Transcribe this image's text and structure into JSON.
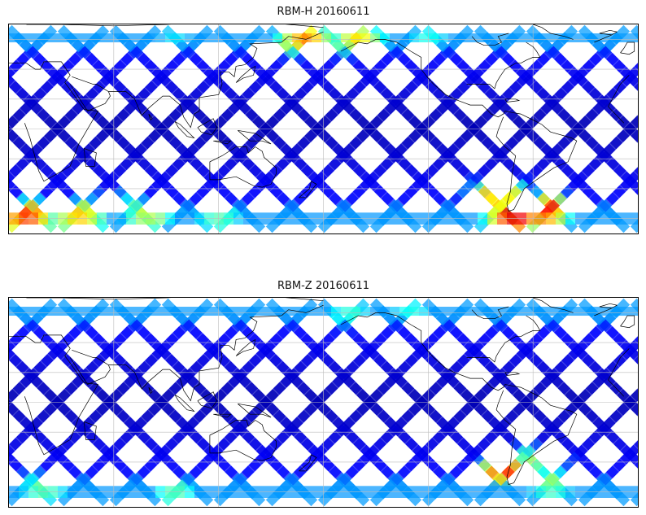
{
  "panels": [
    {
      "title": "RBM-H 20160611",
      "colormap": "jet",
      "hotspots": [
        {
          "lon": 290,
          "lat": -58,
          "level": 0.95
        },
        {
          "lon": 305,
          "lat": -55,
          "level": 0.95
        },
        {
          "lon": 280,
          "lat": -45,
          "level": 0.75
        },
        {
          "lon": 10,
          "lat": -58,
          "level": 0.85
        },
        {
          "lon": 40,
          "lat": -58,
          "level": 0.7
        },
        {
          "lon": 80,
          "lat": -57,
          "level": 0.6
        },
        {
          "lon": 60,
          "lat": -52,
          "level": 0.5
        },
        {
          "lon": 120,
          "lat": -60,
          "level": 0.45
        },
        {
          "lon": 170,
          "lat": 58,
          "level": 0.8
        },
        {
          "lon": 200,
          "lat": 58,
          "level": 0.7
        },
        {
          "lon": 95,
          "lat": 60,
          "level": 0.35
        },
        {
          "lon": 240,
          "lat": 60,
          "level": 0.4
        }
      ]
    },
    {
      "title": "RBM-Z 20160611",
      "colormap": "jet",
      "hotspots": [
        {
          "lon": 285,
          "lat": -48,
          "level": 0.85
        },
        {
          "lon": 300,
          "lat": -40,
          "level": 0.55
        },
        {
          "lon": 310,
          "lat": -55,
          "level": 0.55
        },
        {
          "lon": 20,
          "lat": -57,
          "level": 0.5
        },
        {
          "lon": 95,
          "lat": -60,
          "level": 0.45
        },
        {
          "lon": 195,
          "lat": 58,
          "level": 0.45
        },
        {
          "lon": 230,
          "lat": 60,
          "level": 0.4
        }
      ]
    }
  ],
  "map_extent": {
    "lon_min": 0,
    "lon_max": 360,
    "lat_min": -70,
    "lat_max": 70
  },
  "gridlines": {
    "lon_step": 60,
    "lat_step": 20
  },
  "colors": {
    "coastline": "#000000",
    "grid": "#bdbdbd",
    "background": "#ffffff"
  }
}
